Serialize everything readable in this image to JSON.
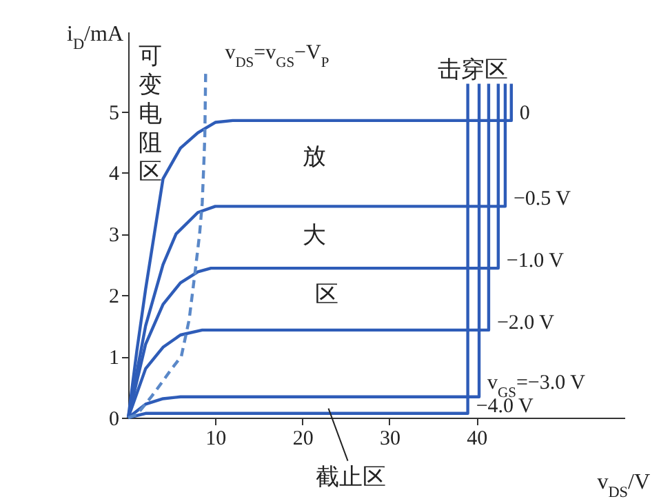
{
  "chart_data": {
    "type": "line",
    "xlabel": "v$_{DS}$/V",
    "ylabel": "i$_{D}$/mA",
    "xlim": [
      0,
      57
    ],
    "ylim": [
      0,
      6.3
    ],
    "xticks": [
      10,
      20,
      30,
      40
    ],
    "yticks": [
      0,
      1,
      2,
      3,
      4,
      5
    ],
    "grid": false,
    "legend": false,
    "marker": "none",
    "line_style": "solid",
    "series": [
      {
        "name": "0",
        "color": "#2e5cb8",
        "x": [
          0,
          1,
          2,
          3,
          4,
          6,
          8,
          10,
          12,
          44,
          44
        ],
        "values": [
          0,
          1.1,
          2.1,
          3.0,
          3.9,
          4.4,
          4.65,
          4.82,
          4.85,
          4.85,
          5.45
        ]
      },
      {
        "name": "−0.5 V",
        "color": "#2e5cb8",
        "x": [
          0,
          2,
          4,
          5.5,
          8,
          10,
          43.3,
          43.3
        ],
        "values": [
          0,
          1.5,
          2.5,
          3.0,
          3.35,
          3.45,
          3.45,
          5.45
        ]
      },
      {
        "name": "−1.0 V",
        "color": "#2e5cb8",
        "x": [
          0,
          2,
          4,
          6,
          8,
          9.5,
          42.5,
          42.5
        ],
        "values": [
          0,
          1.2,
          1.85,
          2.2,
          2.38,
          2.44,
          2.44,
          5.45
        ]
      },
      {
        "name": "−2.0 V",
        "color": "#2e5cb8",
        "x": [
          0,
          2,
          4,
          6,
          8.5,
          41.4,
          41.4
        ],
        "values": [
          0,
          0.8,
          1.15,
          1.35,
          1.43,
          1.43,
          5.45
        ]
      },
      {
        "name": "v$_{GS}$=−3.0 V",
        "color": "#2e5cb8",
        "x": [
          0,
          2,
          4,
          6,
          40.3,
          40.3
        ],
        "values": [
          0,
          0.22,
          0.31,
          0.34,
          0.34,
          5.45
        ]
      },
      {
        "name": "−4.0 V",
        "color": "#2e5cb8",
        "x": [
          0,
          2,
          39,
          39
        ],
        "values": [
          0,
          0.07,
          0.07,
          5.45
        ]
      },
      {
        "name": "v$_{DS}$=v$_{GS}$−V$_{P}$",
        "color": "#5a88c8",
        "line_style": "dashed",
        "x": [
          0,
          1,
          2.7,
          4,
          5,
          6.1,
          7,
          7.7,
          8.2,
          8.5,
          8.7,
          8.8,
          8.9
        ],
        "values": [
          0,
          0.05,
          0.35,
          0.6,
          0.8,
          1.0,
          1.6,
          2.4,
          3.0,
          3.5,
          4.2,
          4.6,
          5.7
        ]
      }
    ],
    "annotations": [
      "可变电阻区",
      "放",
      "大",
      "区",
      "击穿区",
      {
        "text": "截止区",
        "x": 23,
        "y": 0.15
      }
    ]
  }
}
